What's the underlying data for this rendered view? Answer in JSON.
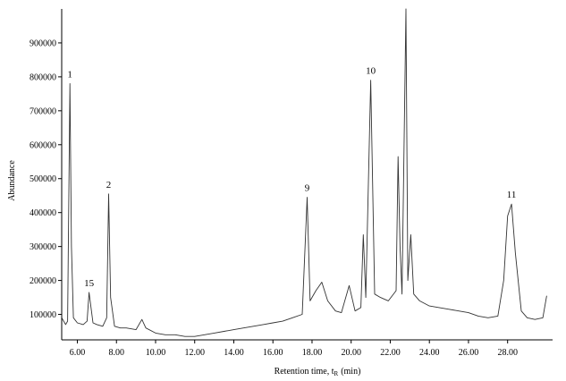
{
  "chart_data": {
    "type": "line",
    "xlabel": "Retention time, t",
    "xlabel_sub": "R",
    "xlabel_unit": "(min)",
    "ylabel": "Abundance",
    "xlim": [
      5.2,
      30.3
    ],
    "ylim": [
      25000,
      1000000
    ],
    "x_ticks": [
      6,
      8,
      10,
      12,
      14,
      16,
      18,
      20,
      22,
      24,
      26,
      28
    ],
    "x_tick_labels": [
      "6.00",
      "8.00",
      "10.00",
      "12.00",
      "14.00",
      "16.00",
      "18.00",
      "20.00",
      "22.00",
      "24.00",
      "26.00",
      "28.00"
    ],
    "y_ticks": [
      100000,
      200000,
      300000,
      400000,
      500000,
      600000,
      700000,
      800000,
      900000
    ],
    "y_tick_labels": [
      "100000",
      "200000",
      "300000",
      "400000",
      "500000",
      "600000",
      "700000",
      "800000",
      "900000"
    ],
    "grid": false,
    "line_color": "#333333",
    "series": [
      {
        "x": [
          5.2,
          5.4,
          5.5,
          5.62,
          5.7,
          5.8,
          6.0,
          6.3,
          6.5,
          6.6,
          6.8,
          7.0,
          7.3,
          7.5,
          7.6,
          7.7,
          7.9,
          8.2,
          8.5,
          9.0,
          9.3,
          9.5,
          10.0,
          10.5,
          11.0,
          11.5,
          12.0,
          12.5,
          13.0,
          13.5,
          14.0,
          14.5,
          15.0,
          15.5,
          16.0,
          16.5,
          17.0,
          17.5,
          17.75,
          17.9,
          18.2,
          18.5,
          18.8,
          19.2,
          19.5,
          19.9,
          20.2,
          20.5,
          20.62,
          20.75,
          21.0,
          21.2,
          21.5,
          21.9,
          22.3,
          22.4,
          22.5,
          22.6,
          22.8,
          22.9,
          23.05,
          23.2,
          23.5,
          24.0,
          24.5,
          25.0,
          25.5,
          26.0,
          26.5,
          27.0,
          27.5,
          27.8,
          28.0,
          28.2,
          28.4,
          28.7,
          29.0,
          29.4,
          29.8,
          30.0
        ],
        "y": [
          90000,
          70000,
          80000,
          780000,
          300000,
          90000,
          75000,
          70000,
          80000,
          165000,
          75000,
          70000,
          65000,
          90000,
          455000,
          150000,
          65000,
          60000,
          60000,
          55000,
          85000,
          60000,
          45000,
          40000,
          40000,
          35000,
          35000,
          40000,
          45000,
          50000,
          55000,
          60000,
          65000,
          70000,
          75000,
          80000,
          90000,
          100000,
          445000,
          140000,
          170000,
          195000,
          140000,
          110000,
          105000,
          185000,
          110000,
          120000,
          335000,
          150000,
          790000,
          160000,
          150000,
          140000,
          170000,
          565000,
          300000,
          160000,
          1000000,
          200000,
          335000,
          160000,
          140000,
          125000,
          120000,
          115000,
          110000,
          105000,
          95000,
          90000,
          95000,
          200000,
          390000,
          425000,
          280000,
          110000,
          90000,
          85000,
          90000,
          155000
        ]
      }
    ],
    "peaks": [
      {
        "label": "1",
        "x": 5.62,
        "y": 780000
      },
      {
        "label": "15",
        "x": 6.6,
        "y": 165000
      },
      {
        "label": "2",
        "x": 7.6,
        "y": 455000
      },
      {
        "label": "9",
        "x": 17.75,
        "y": 445000
      },
      {
        "label": "10",
        "x": 21.0,
        "y": 790000
      },
      {
        "label": "11",
        "x": 28.2,
        "y": 425000
      }
    ]
  }
}
